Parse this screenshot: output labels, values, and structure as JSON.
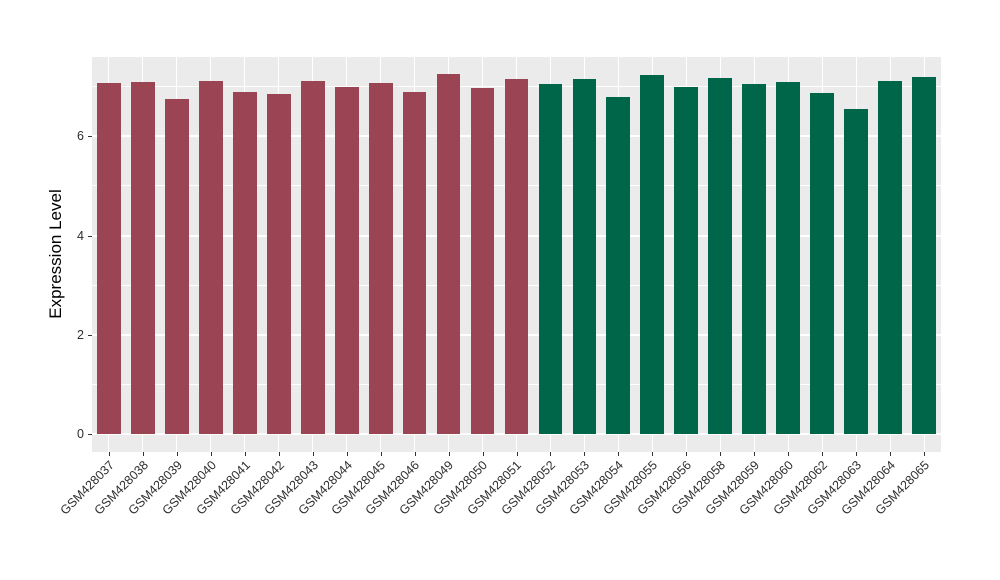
{
  "chart_data": {
    "type": "bar",
    "title": "",
    "xlabel": "",
    "ylabel": "Expression Level",
    "categories": [
      "GSM428037",
      "GSM428038",
      "GSM428039",
      "GSM428040",
      "GSM428041",
      "GSM428042",
      "GSM428043",
      "GSM428044",
      "GSM428045",
      "GSM428046",
      "GSM428049",
      "GSM428050",
      "GSM428051",
      "GSM428052",
      "GSM428053",
      "GSM428054",
      "GSM428055",
      "GSM428056",
      "GSM428058",
      "GSM428059",
      "GSM428060",
      "GSM428062",
      "GSM428063",
      "GSM428064",
      "GSM428065"
    ],
    "values": [
      7.08,
      7.09,
      6.76,
      7.12,
      6.9,
      6.85,
      7.12,
      7.0,
      7.08,
      6.9,
      7.25,
      6.98,
      7.16,
      7.06,
      7.15,
      6.8,
      7.24,
      7.0,
      7.18,
      7.05,
      7.09,
      6.88,
      6.55,
      7.11,
      7.2
    ],
    "groups": [
      "group1",
      "group1",
      "group1",
      "group1",
      "group1",
      "group1",
      "group1",
      "group1",
      "group1",
      "group1",
      "group1",
      "group1",
      "group1",
      "group2",
      "group2",
      "group2",
      "group2",
      "group2",
      "group2",
      "group2",
      "group2",
      "group2",
      "group2",
      "group2",
      "group2"
    ],
    "group_colors": {
      "group1": "#9B4453",
      "group2": "#00664A"
    },
    "yticks": [
      "0",
      "2",
      "4",
      "6"
    ],
    "ytick_values": [
      0,
      2,
      4,
      6
    ],
    "yminor_values": [
      1,
      3,
      5,
      7
    ],
    "ylim": [
      0,
      7.6
    ],
    "bar_relative_width": 0.7,
    "legend": "none",
    "grid": true,
    "panel_background": "#EBEBEB",
    "grid_color": "#FFFFFF",
    "axis_text_color": "#2e2e2e",
    "x_label_angle_deg": 45
  }
}
